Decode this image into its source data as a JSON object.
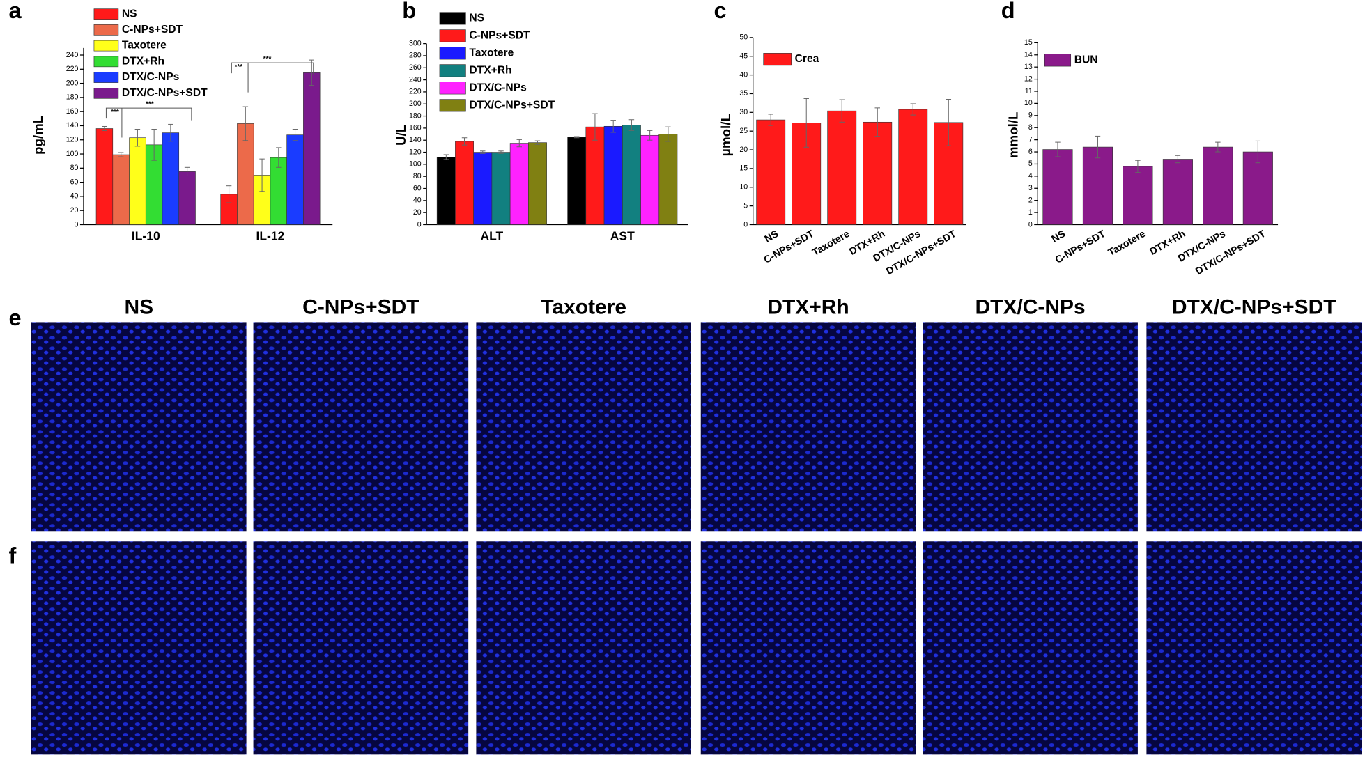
{
  "panel_labels": [
    "a",
    "b",
    "c",
    "d",
    "e",
    "f"
  ],
  "image_columns": [
    "NS",
    "C-NPs+SDT",
    "Taxotere",
    "DTX+Rh",
    "DTX/C-NPs",
    "DTX/C-NPs+SDT"
  ],
  "chart_data": [
    {
      "type": "bar",
      "y_label": "pg/mL",
      "categories": [
        "IL-10",
        "IL-12"
      ],
      "ylim": [
        0,
        250
      ],
      "yticks": [
        0,
        20,
        40,
        60,
        80,
        100,
        120,
        140,
        160,
        180,
        200,
        220,
        240
      ],
      "series": [
        {
          "name": "NS",
          "color": "#ff1a1a",
          "values": [
            136,
            43
          ],
          "errors": [
            3,
            12
          ]
        },
        {
          "name": "C-NPs+SDT",
          "color": "#ec6a4a",
          "values": [
            99,
            143
          ],
          "errors": [
            3,
            24
          ]
        },
        {
          "name": "Taxotere",
          "color": "#ffff1a",
          "values": [
            123,
            70
          ],
          "errors": [
            12,
            23
          ]
        },
        {
          "name": "DTX+Rh",
          "color": "#33dd33",
          "values": [
            113,
            95
          ],
          "errors": [
            22,
            14
          ]
        },
        {
          "name": "DTX/C-NPs",
          "color": "#1a3cff",
          "values": [
            130,
            127
          ],
          "errors": [
            12,
            8
          ]
        },
        {
          "name": "DTX/C-NPs+SDT",
          "color": "#7a1a8c",
          "values": [
            75,
            215
          ],
          "errors": [
            6,
            18
          ]
        }
      ],
      "annotations": [
        "***",
        "***",
        "***",
        "***"
      ]
    },
    {
      "type": "bar",
      "y_label": "U/L",
      "categories": [
        "ALT",
        "AST"
      ],
      "ylim": [
        0,
        300
      ],
      "yticks": [
        0,
        20,
        40,
        60,
        80,
        100,
        120,
        140,
        160,
        180,
        200,
        220,
        240,
        260,
        280,
        300
      ],
      "series": [
        {
          "name": "NS",
          "color": "#000000",
          "values": [
            112,
            145
          ],
          "errors": [
            4,
            1
          ]
        },
        {
          "name": "C-NPs+SDT",
          "color": "#ff1a1a",
          "values": [
            138,
            162
          ],
          "errors": [
            6,
            22
          ]
        },
        {
          "name": "Taxotere",
          "color": "#1a1aff",
          "values": [
            120,
            163
          ],
          "errors": [
            2,
            10
          ]
        },
        {
          "name": "DTX+Rh",
          "color": "#128080",
          "values": [
            120,
            165
          ],
          "errors": [
            2,
            9
          ]
        },
        {
          "name": "DTX/C-NPs",
          "color": "#ff22ff",
          "values": [
            135,
            148
          ],
          "errors": [
            6,
            8
          ]
        },
        {
          "name": "DTX/C-NPs+SDT",
          "color": "#808012",
          "values": [
            136,
            150
          ],
          "errors": [
            3,
            12
          ]
        }
      ]
    },
    {
      "type": "bar",
      "y_label": "μmol/L",
      "categories": [
        "NS",
        "C-NPs+SDT",
        "Taxotere",
        "DTX+Rh",
        "DTX/C-NPs",
        "DTX/C-NPs+SDT"
      ],
      "ylim": [
        0,
        50
      ],
      "yticks": [
        0,
        5,
        10,
        15,
        20,
        25,
        30,
        35,
        40,
        45,
        50
      ],
      "series": [
        {
          "name": "Crea",
          "color": "#ff1a1a",
          "values": [
            28,
            27.2,
            30.4,
            27.4,
            30.8,
            27.3
          ],
          "errors": [
            1.5,
            6.5,
            3,
            3.8,
            1.5,
            6.2
          ]
        }
      ]
    },
    {
      "type": "bar",
      "y_label": "mmol/L",
      "categories": [
        "NS",
        "C-NPs+SDT",
        "Taxotere",
        "DTX+Rh",
        "DTX/C-NPs",
        "DTX/C-NPs+SDT"
      ],
      "ylim": [
        0,
        15
      ],
      "yticks": [
        0,
        1,
        2,
        3,
        4,
        5,
        6,
        7,
        8,
        9,
        10,
        11,
        12,
        13,
        14,
        15
      ],
      "series": [
        {
          "name": "BUN",
          "color": "#8a1a8a",
          "values": [
            6.2,
            6.4,
            4.8,
            5.4,
            6.4,
            6.0
          ],
          "errors": [
            0.6,
            0.9,
            0.5,
            0.3,
            0.4,
            0.9
          ]
        }
      ]
    }
  ]
}
